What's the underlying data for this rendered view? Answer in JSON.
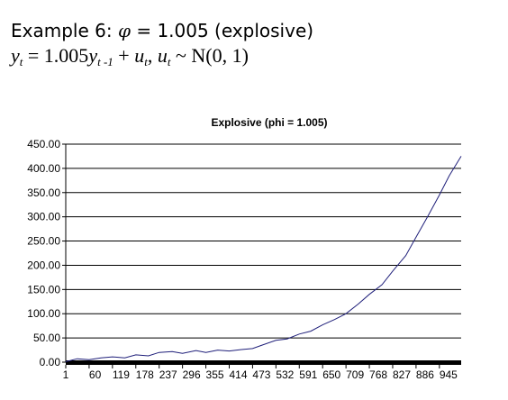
{
  "slide": {
    "title_prefix": "Example 6: ",
    "phi_symbol": "φ",
    "title_suffix": " = 1.005 (explosive)",
    "formula": {
      "y": "y",
      "t": "t",
      "eq": " = 1.005",
      "lag": "t -1",
      "plus": " + ",
      "u": "u",
      "comma": ", ",
      "dist": " ~ N(0, 1)"
    }
  },
  "chart_data": {
    "type": "line",
    "title": "Explosive (phi = 1.005)",
    "xlabel": "",
    "ylabel": "",
    "y_tick_labels": [
      "0.00",
      "50.00",
      "100.00",
      "150.00",
      "200.00",
      "250.00",
      "300.00",
      "350.00",
      "400.00",
      "450.00"
    ],
    "y_ticks": [
      0,
      50,
      100,
      150,
      200,
      250,
      300,
      350,
      400,
      450
    ],
    "ylim": [
      0,
      450
    ],
    "x_tick_labels": [
      "1",
      "60",
      "119",
      "178",
      "237",
      "296",
      "355",
      "414",
      "473",
      "532",
      "591",
      "650",
      "709",
      "768",
      "827",
      "886",
      "945"
    ],
    "xlim": [
      1,
      1000
    ],
    "grid": "horizontal",
    "legend": "none",
    "line_color": "#1f1f7a",
    "series": [
      {
        "x": [
          1,
          30,
          60,
          90,
          119,
          150,
          178,
          210,
          237,
          270,
          296,
          330,
          355,
          385,
          414,
          445,
          473,
          500,
          532,
          560,
          591,
          620,
          650,
          680,
          709,
          740,
          768,
          800,
          827,
          860,
          886,
          915,
          945,
          970,
          1000
        ],
        "values": [
          1,
          7,
          5,
          9,
          11,
          9,
          15,
          13,
          20,
          22,
          18,
          24,
          20,
          25,
          23,
          26,
          28,
          36,
          45,
          48,
          58,
          64,
          77,
          88,
          100,
          120,
          140,
          160,
          188,
          220,
          258,
          300,
          345,
          385,
          425
        ]
      }
    ]
  }
}
